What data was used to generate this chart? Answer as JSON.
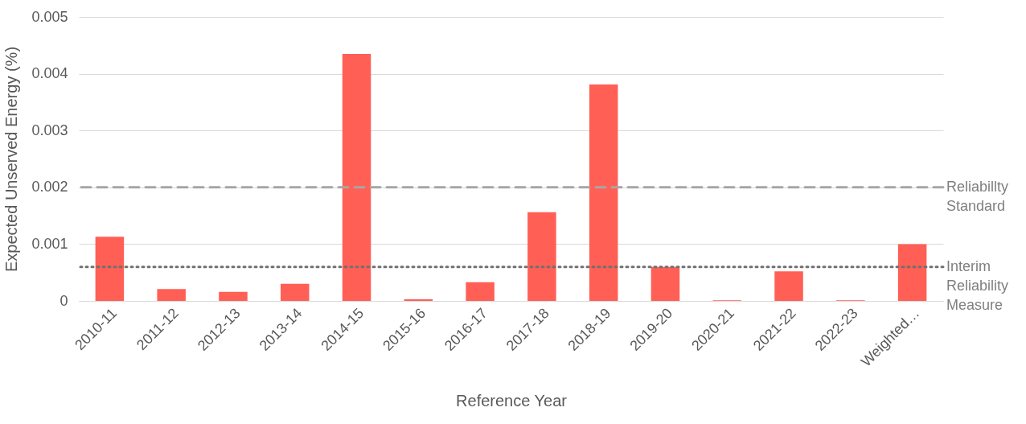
{
  "chart_data": {
    "type": "bar",
    "xlabel": "Reference Year",
    "ylabel": "Expected Unserved Energy (%)",
    "categories": [
      "2010-11",
      "2011-12",
      "2012-13",
      "2013-14",
      "2014-15",
      "2015-16",
      "2016-17",
      "2017-18",
      "2018-19",
      "2019-20",
      "2020-21",
      "2021-22",
      "2022-23",
      "Weighted…"
    ],
    "values": [
      0.00113,
      0.00021,
      0.00016,
      0.0003,
      0.00435,
      3e-05,
      0.00033,
      0.00156,
      0.00381,
      0.0006,
      1e-05,
      0.00052,
      1e-05,
      0.001
    ],
    "color": "#ff5f55",
    "ylim": [
      0,
      0.005
    ],
    "yticks": [
      0,
      0.001,
      0.002,
      0.003,
      0.004,
      0.005
    ],
    "grid": "y",
    "ref_lines": [
      {
        "axis": "y",
        "value": 0.002,
        "label": "Reliabillty Standard",
        "color": "#a6a6a6",
        "line_style": "dashed"
      },
      {
        "axis": "y",
        "value": 0.0006,
        "label": "Interim Reliability Measure",
        "color": "#707070",
        "line_style": "dotted"
      }
    ]
  }
}
